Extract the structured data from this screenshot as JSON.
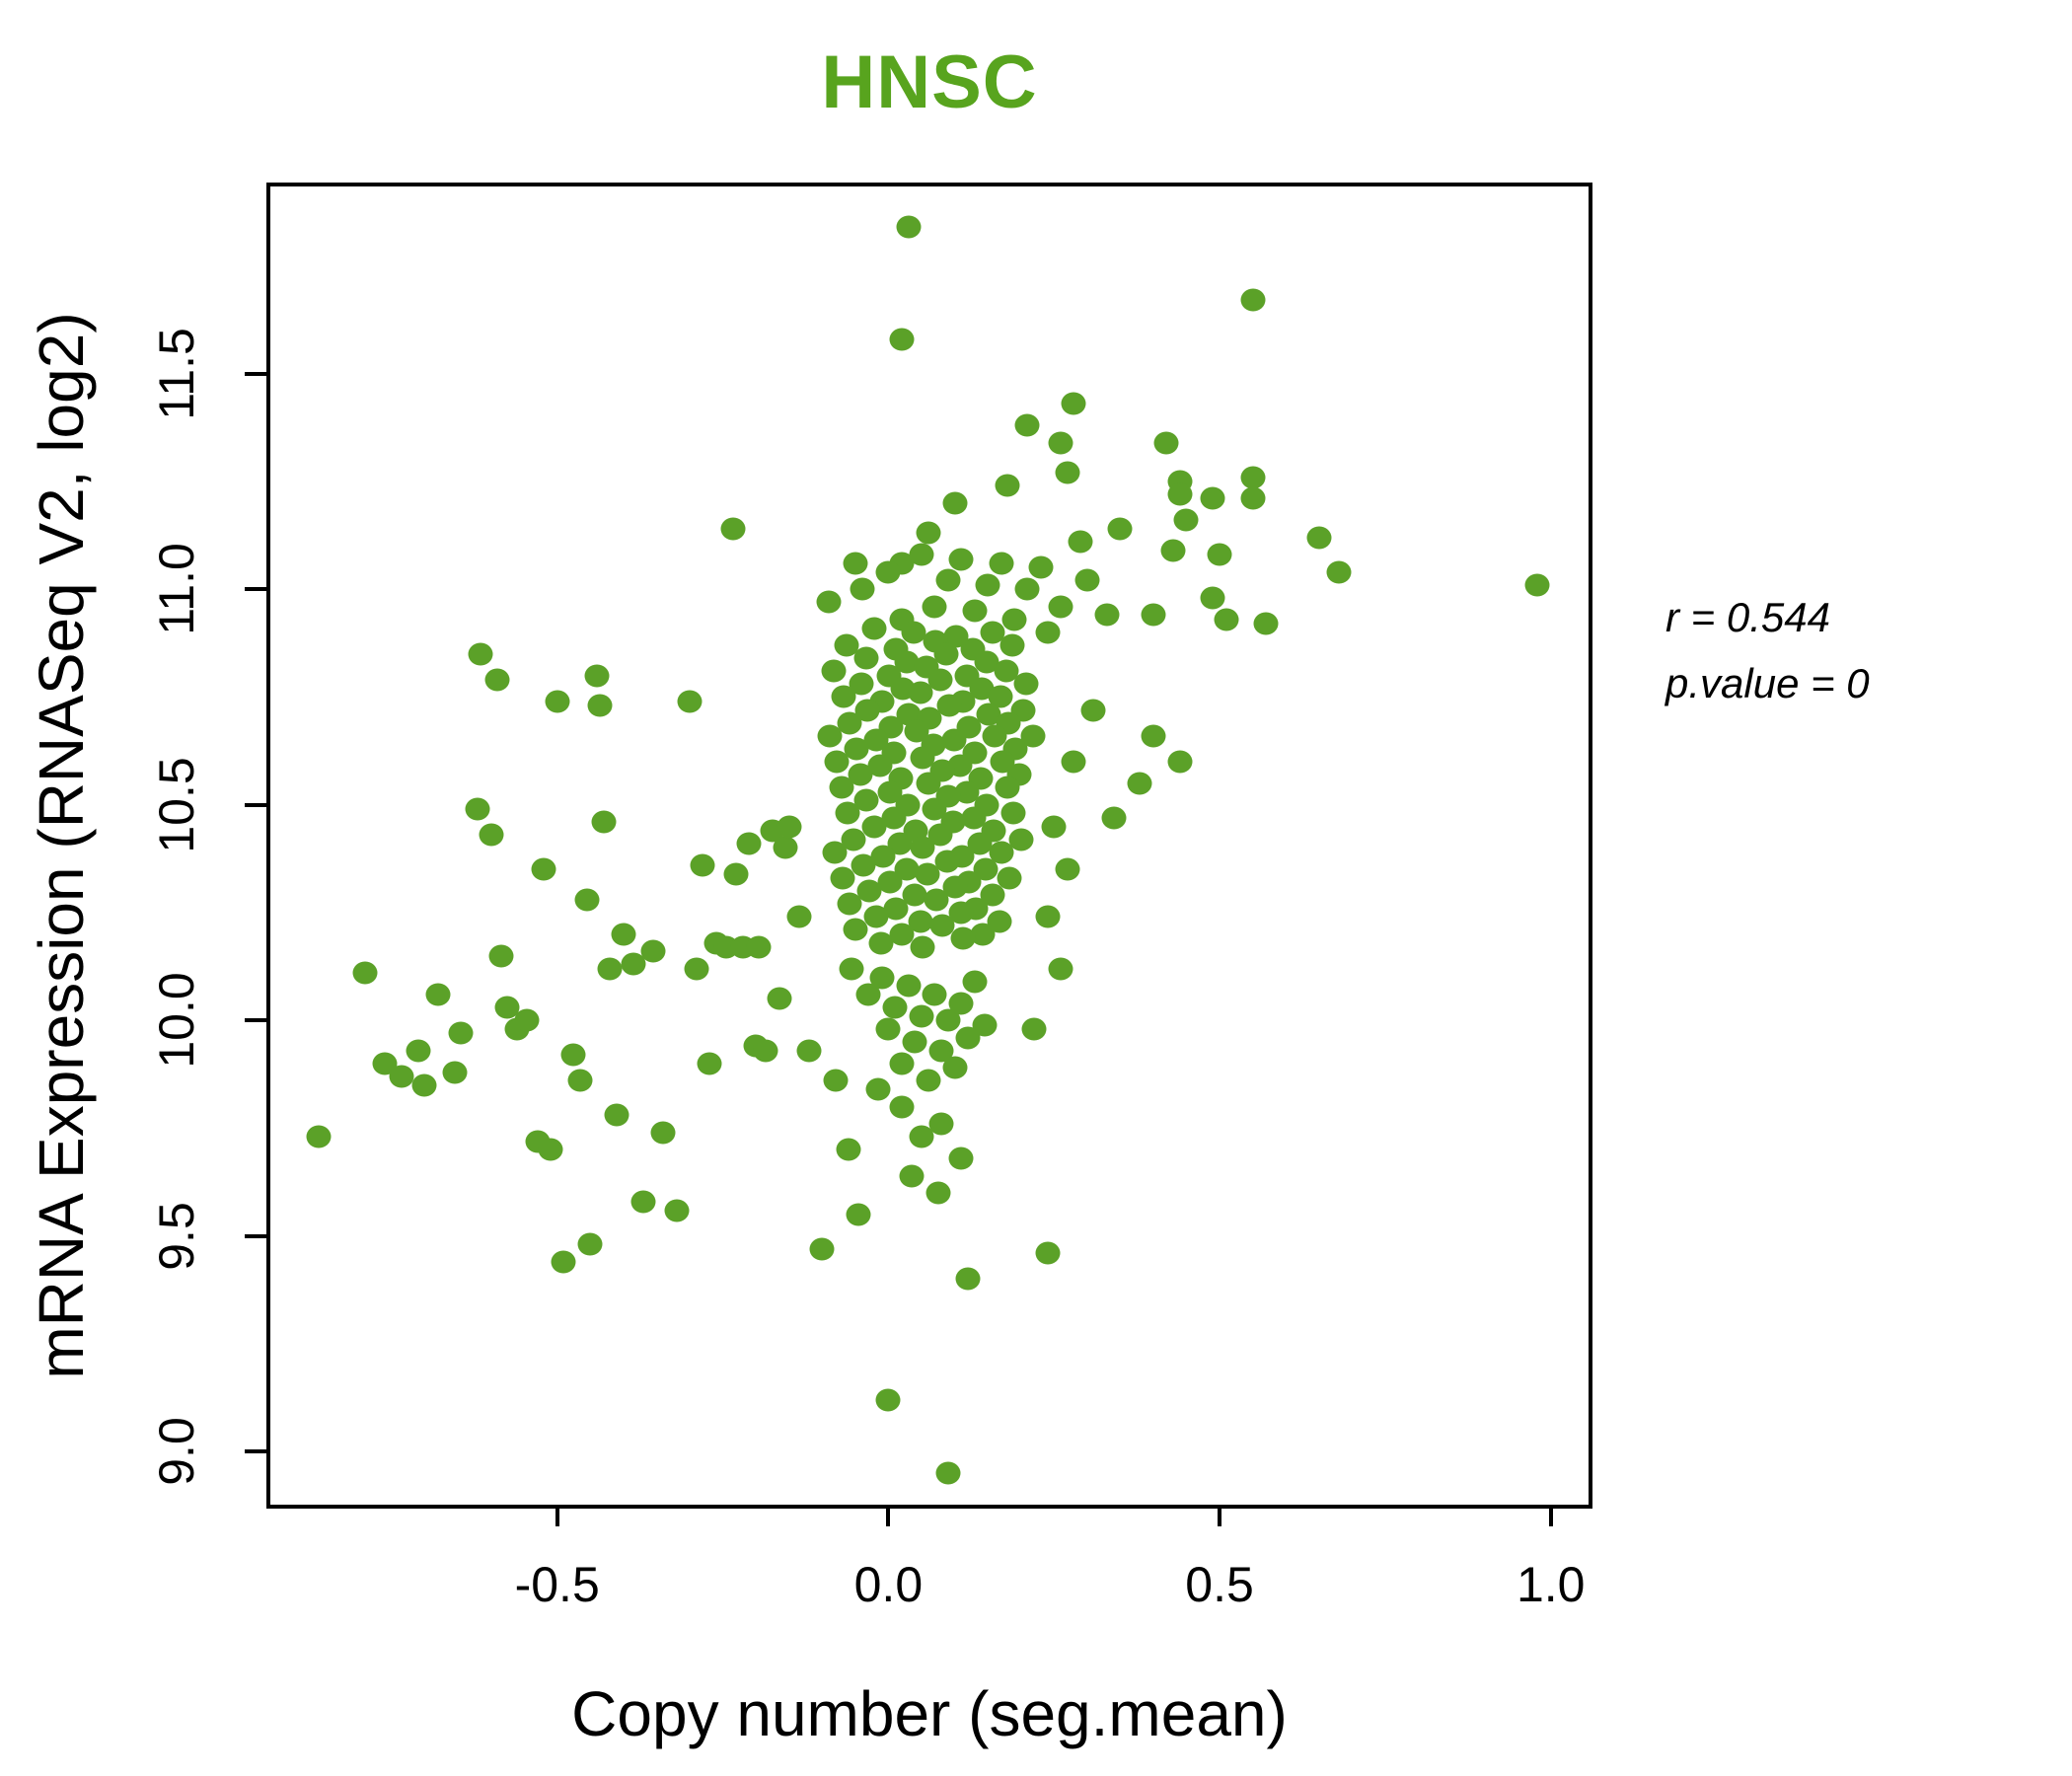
{
  "title": {
    "text": "HNSC",
    "color": "#58a41e"
  },
  "x_axis": {
    "label": "Copy number (seg.mean)",
    "tick_labels": [
      "-0.5",
      "0.0",
      "0.5",
      "1.0"
    ],
    "tick_values": [
      -0.5,
      0.0,
      0.5,
      1.0
    ]
  },
  "y_axis": {
    "label": "mRNA Expression (RNASeq V2, log2)",
    "tick_labels": [
      "9.0",
      "9.5",
      "10.0",
      "10.5",
      "11.0",
      "11.5"
    ],
    "tick_values": [
      9.0,
      9.5,
      10.0,
      10.5,
      11.0,
      11.5
    ]
  },
  "annotation": {
    "line1": "r = 0.544",
    "line2": "p.value = 0"
  },
  "colors": {
    "point": "#5ba128",
    "title": "#58a41e",
    "axis": "#000000"
  },
  "chart_data": {
    "type": "scatter",
    "title": "HNSC",
    "xlabel": "Copy number (seg.mean)",
    "ylabel": "mRNA Expression (RNASeq V2, log2)",
    "xlim": [
      -0.933,
      1.057
    ],
    "ylim": [
      8.877,
      11.934
    ],
    "grid": false,
    "legend_position": "none",
    "stats": {
      "r": 0.544,
      "p_value": 0
    },
    "series": [
      {
        "name": "samples",
        "color": "#5ba128",
        "points": [
          [
            0.03,
            11.84
          ],
          [
            0.02,
            11.58
          ],
          [
            0.55,
            11.67
          ],
          [
            0.98,
            11.01
          ],
          [
            -0.235,
            11.14
          ],
          [
            0.28,
            11.43
          ],
          [
            0.21,
            11.38
          ],
          [
            0.26,
            11.34
          ],
          [
            0.27,
            11.27
          ],
          [
            0.18,
            11.24
          ],
          [
            0.44,
            11.25
          ],
          [
            0.44,
            11.22
          ],
          [
            0.49,
            11.21
          ],
          [
            0.1,
            11.2
          ],
          [
            0.45,
            11.16
          ],
          [
            0.06,
            11.13
          ],
          [
            0.29,
            11.11
          ],
          [
            0.35,
            11.14
          ],
          [
            -0.05,
            11.06
          ],
          [
            0.02,
            11.06
          ],
          [
            0.5,
            11.08
          ],
          [
            0.42,
            11.34
          ],
          [
            0.55,
            11.26
          ],
          [
            0.55,
            11.21
          ],
          [
            0.43,
            11.09
          ],
          [
            0.65,
            11.12
          ],
          [
            0.68,
            11.04
          ],
          [
            0.4,
            10.94
          ],
          [
            0.4,
            10.66
          ],
          [
            0.57,
            10.92
          ],
          [
            -0.09,
            10.97
          ],
          [
            -0.04,
            11.0
          ],
          [
            0.0,
            11.04
          ],
          [
            0.02,
            10.93
          ],
          [
            0.05,
            11.08
          ],
          [
            0.07,
            10.96
          ],
          [
            0.09,
            11.02
          ],
          [
            0.11,
            11.07
          ],
          [
            0.13,
            10.95
          ],
          [
            0.15,
            11.01
          ],
          [
            0.17,
            11.06
          ],
          [
            0.19,
            10.93
          ],
          [
            0.21,
            11.0
          ],
          [
            0.23,
            11.05
          ],
          [
            0.26,
            10.96
          ],
          [
            0.3,
            11.02
          ],
          [
            0.33,
            10.94
          ],
          [
            0.24,
            10.9
          ],
          [
            0.49,
            10.98
          ],
          [
            0.51,
            10.93
          ],
          [
            0.34,
            10.47
          ],
          [
            0.38,
            10.55
          ],
          [
            0.44,
            10.6
          ],
          [
            0.31,
            10.72
          ],
          [
            0.28,
            10.6
          ],
          [
            0.25,
            10.45
          ],
          [
            0.27,
            10.35
          ],
          [
            0.24,
            10.24
          ],
          [
            0.26,
            10.12
          ],
          [
            0.22,
            9.98
          ],
          [
            -0.021,
            10.91
          ],
          [
            0.038,
            10.9
          ],
          [
            0.102,
            10.89
          ],
          [
            0.158,
            10.9
          ],
          [
            -0.063,
            10.87
          ],
          [
            0.012,
            10.86
          ],
          [
            0.071,
            10.88
          ],
          [
            0.128,
            10.86
          ],
          [
            0.187,
            10.87
          ],
          [
            -0.034,
            10.84
          ],
          [
            0.027,
            10.83
          ],
          [
            0.088,
            10.85
          ],
          [
            0.149,
            10.83
          ],
          [
            -0.082,
            10.81
          ],
          [
            0.001,
            10.8
          ],
          [
            0.058,
            10.82
          ],
          [
            0.119,
            10.8
          ],
          [
            0.178,
            10.81
          ],
          [
            -0.041,
            10.78
          ],
          [
            0.022,
            10.77
          ],
          [
            0.079,
            10.79
          ],
          [
            0.141,
            10.77
          ],
          [
            0.208,
            10.78
          ],
          [
            -0.068,
            10.75
          ],
          [
            -0.009,
            10.74
          ],
          [
            0.049,
            10.76
          ],
          [
            0.112,
            10.74
          ],
          [
            0.169,
            10.75
          ],
          [
            -0.032,
            10.72
          ],
          [
            0.031,
            10.71
          ],
          [
            0.092,
            10.73
          ],
          [
            0.151,
            10.71
          ],
          [
            0.203,
            10.72
          ],
          [
            -0.059,
            10.69
          ],
          [
            0.004,
            10.68
          ],
          [
            0.062,
            10.7
          ],
          [
            0.121,
            10.68
          ],
          [
            0.181,
            10.69
          ],
          [
            -0.088,
            10.66
          ],
          [
            -0.019,
            10.65
          ],
          [
            0.042,
            10.67
          ],
          [
            0.099,
            10.65
          ],
          [
            0.161,
            10.66
          ],
          [
            0.219,
            10.66
          ],
          [
            -0.048,
            10.63
          ],
          [
            0.009,
            10.62
          ],
          [
            0.068,
            10.64
          ],
          [
            0.131,
            10.62
          ],
          [
            0.192,
            10.63
          ],
          [
            -0.078,
            10.6
          ],
          [
            -0.012,
            10.59
          ],
          [
            0.051,
            10.61
          ],
          [
            0.108,
            10.59
          ],
          [
            0.172,
            10.6
          ],
          [
            -0.042,
            10.57
          ],
          [
            0.019,
            10.56
          ],
          [
            0.081,
            10.58
          ],
          [
            0.139,
            10.56
          ],
          [
            0.198,
            10.57
          ],
          [
            -0.071,
            10.54
          ],
          [
            0.002,
            10.53
          ],
          [
            0.061,
            10.55
          ],
          [
            0.118,
            10.53
          ],
          [
            0.179,
            10.54
          ],
          [
            -0.033,
            10.51
          ],
          [
            0.029,
            10.5
          ],
          [
            0.091,
            10.52
          ],
          [
            0.148,
            10.5
          ],
          [
            -0.061,
            10.48
          ],
          [
            0.008,
            10.47
          ],
          [
            0.069,
            10.49
          ],
          [
            0.129,
            10.47
          ],
          [
            0.189,
            10.48
          ],
          [
            -0.022,
            10.45
          ],
          [
            0.041,
            10.44
          ],
          [
            0.098,
            10.46
          ],
          [
            0.159,
            10.44
          ],
          [
            -0.052,
            10.42
          ],
          [
            0.018,
            10.41
          ],
          [
            0.078,
            10.43
          ],
          [
            0.138,
            10.41
          ],
          [
            0.201,
            10.42
          ],
          [
            -0.081,
            10.39
          ],
          [
            -0.008,
            10.38
          ],
          [
            0.052,
            10.4
          ],
          [
            0.111,
            10.38
          ],
          [
            0.171,
            10.39
          ],
          [
            -0.038,
            10.36
          ],
          [
            0.028,
            10.35
          ],
          [
            0.089,
            10.37
          ],
          [
            0.147,
            10.35
          ],
          [
            -0.069,
            10.33
          ],
          [
            0.003,
            10.32
          ],
          [
            0.059,
            10.34
          ],
          [
            0.122,
            10.32
          ],
          [
            0.182,
            10.33
          ],
          [
            -0.029,
            10.3
          ],
          [
            0.039,
            10.29
          ],
          [
            0.101,
            10.31
          ],
          [
            0.157,
            10.29
          ],
          [
            -0.058,
            10.27
          ],
          [
            0.011,
            10.26
          ],
          [
            0.072,
            10.28
          ],
          [
            0.132,
            10.26
          ],
          [
            -0.018,
            10.24
          ],
          [
            0.048,
            10.23
          ],
          [
            0.109,
            10.25
          ],
          [
            0.168,
            10.23
          ],
          [
            -0.049,
            10.21
          ],
          [
            0.021,
            10.2
          ],
          [
            0.082,
            10.22
          ],
          [
            0.142,
            10.2
          ],
          [
            -0.011,
            10.18
          ],
          [
            0.051,
            10.17
          ],
          [
            0.112,
            10.19
          ],
          [
            -0.055,
            10.12
          ],
          [
            -0.03,
            10.06
          ],
          [
            -0.01,
            10.1
          ],
          [
            0.0,
            9.98
          ],
          [
            0.01,
            10.03
          ],
          [
            0.02,
            9.9
          ],
          [
            0.03,
            10.08
          ],
          [
            0.04,
            9.95
          ],
          [
            0.05,
            10.01
          ],
          [
            0.06,
            9.86
          ],
          [
            0.07,
            10.06
          ],
          [
            0.08,
            9.93
          ],
          [
            0.09,
            10.0
          ],
          [
            0.1,
            9.89
          ],
          [
            0.11,
            10.04
          ],
          [
            0.12,
            9.96
          ],
          [
            0.13,
            10.09
          ],
          [
            0.145,
            9.99
          ],
          [
            0.02,
            9.8
          ],
          [
            0.05,
            9.73
          ],
          [
            0.08,
            9.76
          ],
          [
            -0.015,
            9.84
          ],
          [
            0.035,
            9.64
          ],
          [
            0.075,
            9.6
          ],
          [
            0.11,
            9.68
          ],
          [
            -0.1,
            9.47
          ],
          [
            0.24,
            9.46
          ],
          [
            0.12,
            9.4
          ],
          [
            0.0,
            9.12
          ],
          [
            0.09,
            8.95
          ],
          [
            -0.045,
            9.55
          ],
          [
            -0.08,
            9.86
          ],
          [
            -0.12,
            9.93
          ],
          [
            -0.06,
            9.7
          ],
          [
            -0.86,
            9.73
          ],
          [
            -0.79,
            10.11
          ],
          [
            -0.76,
            9.9
          ],
          [
            -0.735,
            9.87
          ],
          [
            -0.71,
            9.93
          ],
          [
            -0.7,
            9.85
          ],
          [
            -0.68,
            10.06
          ],
          [
            -0.655,
            9.88
          ],
          [
            -0.645,
            9.97
          ],
          [
            -0.62,
            10.49
          ],
          [
            -0.615,
            10.85
          ],
          [
            -0.6,
            10.43
          ],
          [
            -0.59,
            10.79
          ],
          [
            -0.585,
            10.15
          ],
          [
            -0.575,
            10.03
          ],
          [
            -0.56,
            9.98
          ],
          [
            -0.545,
            10.0
          ],
          [
            -0.53,
            9.72
          ],
          [
            -0.52,
            10.35
          ],
          [
            -0.51,
            9.7
          ],
          [
            -0.5,
            10.74
          ],
          [
            -0.49,
            9.44
          ],
          [
            -0.475,
            9.92
          ],
          [
            -0.465,
            9.86
          ],
          [
            -0.455,
            10.28
          ],
          [
            -0.45,
            9.48
          ],
          [
            -0.44,
            10.8
          ],
          [
            -0.435,
            10.73
          ],
          [
            -0.43,
            10.46
          ],
          [
            -0.42,
            10.12
          ],
          [
            -0.41,
            9.78
          ],
          [
            -0.4,
            10.2
          ],
          [
            -0.385,
            10.13
          ],
          [
            -0.37,
            9.58
          ],
          [
            -0.355,
            10.16
          ],
          [
            -0.34,
            9.74
          ],
          [
            -0.32,
            9.56
          ],
          [
            -0.3,
            10.74
          ],
          [
            -0.29,
            10.12
          ],
          [
            -0.28,
            10.36
          ],
          [
            -0.27,
            9.9
          ],
          [
            -0.26,
            10.18
          ],
          [
            -0.245,
            10.17
          ],
          [
            -0.23,
            10.34
          ],
          [
            -0.22,
            10.17
          ],
          [
            -0.21,
            10.41
          ],
          [
            -0.2,
            9.94
          ],
          [
            -0.195,
            10.17
          ],
          [
            -0.185,
            9.93
          ],
          [
            -0.175,
            10.44
          ],
          [
            -0.165,
            10.05
          ],
          [
            -0.155,
            10.4
          ],
          [
            -0.15,
            10.45
          ],
          [
            -0.135,
            10.24
          ]
        ]
      }
    ]
  }
}
